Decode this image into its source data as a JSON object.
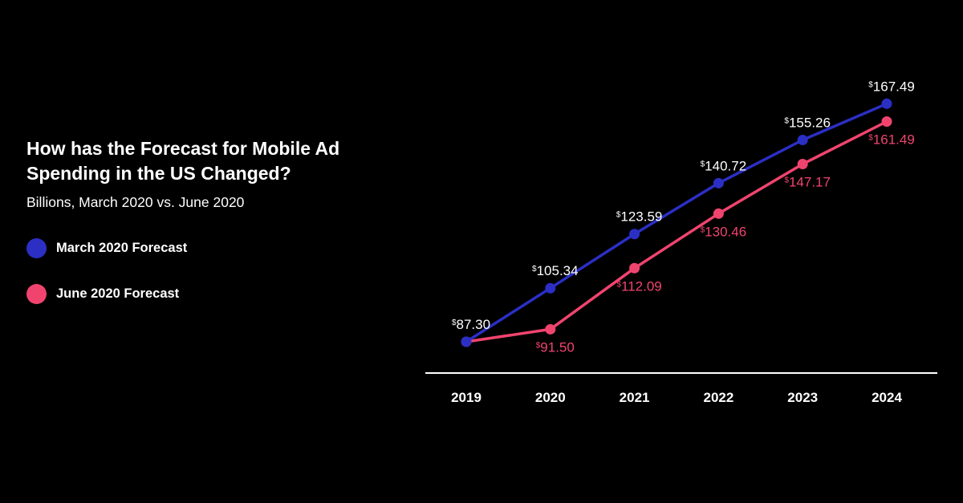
{
  "chart_data": {
    "type": "line",
    "title": "How has the Forecast for Mobile Ad Spending in the US Changed?",
    "subtitle": "Billions, March 2020 vs. June 2020",
    "categories": [
      "2019",
      "2020",
      "2021",
      "2022",
      "2023",
      "2024"
    ],
    "currency_symbol": "$",
    "series": [
      {
        "name": "March 2020 Forecast",
        "color": "#2b2fc4",
        "values": [
          87.3,
          105.34,
          123.59,
          140.72,
          155.26,
          167.49
        ],
        "labels": [
          "87.30",
          "105.34",
          "123.59",
          "140.72",
          "155.26",
          "167.49"
        ],
        "label_position": "above"
      },
      {
        "name": "June 2020 Forecast",
        "color": "#f0446e",
        "values": [
          87.3,
          91.5,
          112.09,
          130.46,
          147.17,
          161.49
        ],
        "labels": [
          "",
          "91.50",
          "112.09",
          "130.46",
          "147.17",
          "161.49"
        ],
        "label_position": "below"
      }
    ],
    "legend": "left",
    "grid": false,
    "ylim": [
      75,
      170
    ]
  }
}
